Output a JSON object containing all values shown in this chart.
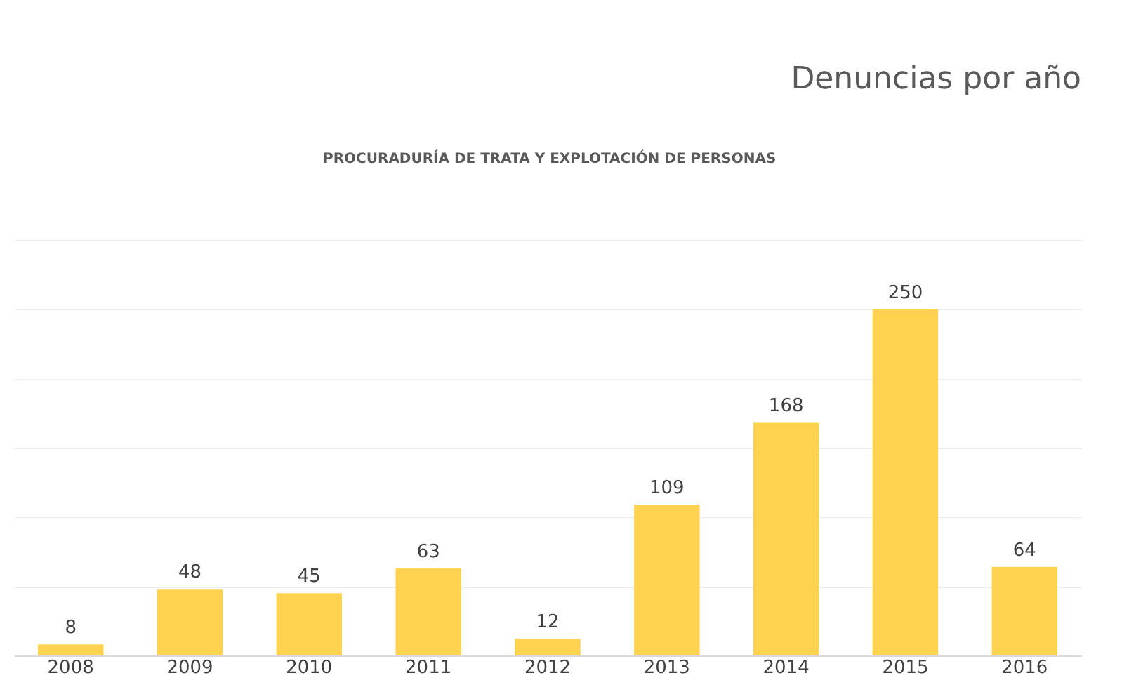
{
  "chart_data": {
    "type": "bar",
    "title": "Denuncias por año",
    "annotations": [
      "PROCURADURÍA DE TRATA Y EXPLOTACIÓN DE PERSONAS"
    ],
    "categories": [
      "2008",
      "2009",
      "2010",
      "2011",
      "2012",
      "2013",
      "2014",
      "2015",
      "2016"
    ],
    "values": [
      8,
      48,
      45,
      63,
      12,
      109,
      168,
      250,
      64
    ],
    "color": "#ffd34f",
    "ylim": [
      0,
      300
    ],
    "yticks": [
      {
        "value": 0,
        "label": null
      },
      {
        "value": 50,
        "label": null
      },
      {
        "value": 100,
        "label": null
      },
      {
        "value": 150,
        "label": null
      },
      {
        "value": 200,
        "label": null
      },
      {
        "value": 250,
        "label": null
      },
      {
        "value": 300,
        "label": null
      }
    ],
    "grid": "y",
    "tick_labels": "x",
    "data_labels": true
  }
}
